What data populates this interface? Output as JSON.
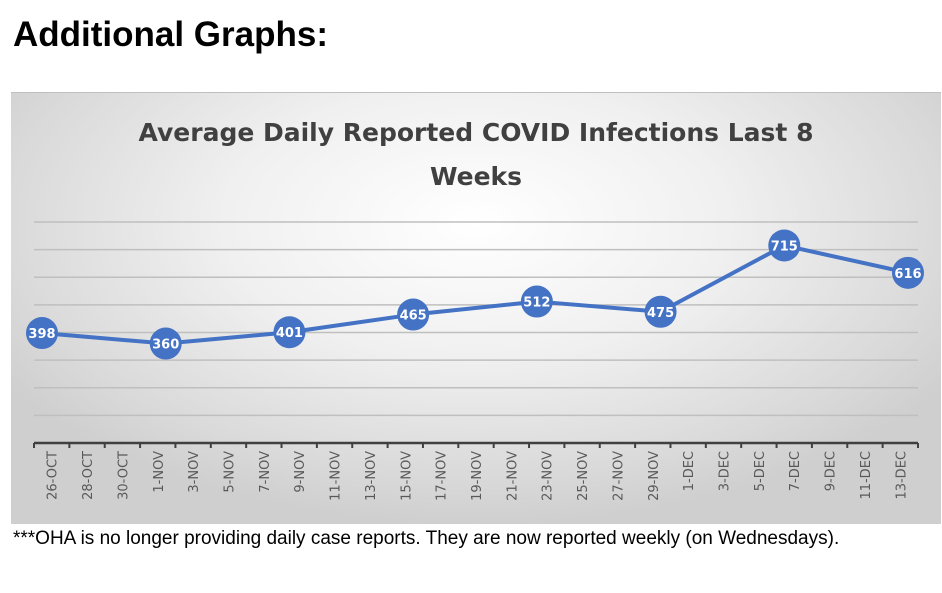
{
  "page": {
    "heading": "Additional Graphs:",
    "footnote": "***OHA is no longer providing daily case reports.  They are now reported weekly (on Wednesdays)."
  },
  "colors": {
    "series": "#4472c4",
    "title_text": "#404040",
    "axis": "#404040",
    "gridline": "#bfbfbf",
    "label_text": "#ffffff"
  },
  "chart_data": {
    "type": "line",
    "title": "Average Daily Reported COVID Infections Last 8 Weeks",
    "title_lines": [
      "Average Daily Reported COVID Infections Last 8",
      "Weeks"
    ],
    "xlabel": "",
    "ylabel": "",
    "ylim": [
      0,
      800
    ],
    "y_gridlines": [
      100,
      200,
      300,
      400,
      500,
      600,
      700,
      800
    ],
    "y_tick_labels_visible": false,
    "grid": true,
    "legend": "none",
    "x_tick_labels": [
      "26-OCT",
      "28-OCT",
      "30-OCT",
      "1-NOV",
      "3-NOV",
      "5-NOV",
      "7-NOV",
      "9-NOV",
      "11-NOV",
      "13-NOV",
      "15-NOV",
      "17-NOV",
      "19-NOV",
      "21-NOV",
      "23-NOV",
      "25-NOV",
      "27-NOV",
      "29-NOV",
      "1-DEC",
      "3-DEC",
      "5-DEC",
      "7-DEC",
      "9-DEC",
      "11-DEC",
      "13-DEC"
    ],
    "x_day_range": [
      0,
      49
    ],
    "series": [
      {
        "name": "Average Daily Reported COVID Infections",
        "x_days": [
          0,
          7,
          14,
          21,
          28,
          35,
          42,
          49
        ],
        "x": [
          "26-Oct",
          "2-Nov",
          "9-Nov",
          "16-Nov",
          "23-Nov",
          "30-Nov",
          "7-Dec",
          "14-Dec"
        ],
        "values": [
          398,
          360,
          401,
          465,
          512,
          475,
          715,
          616
        ],
        "data_labels": [
          "398",
          "360",
          "401",
          "465",
          "512",
          "475",
          "715",
          "616"
        ]
      }
    ]
  }
}
